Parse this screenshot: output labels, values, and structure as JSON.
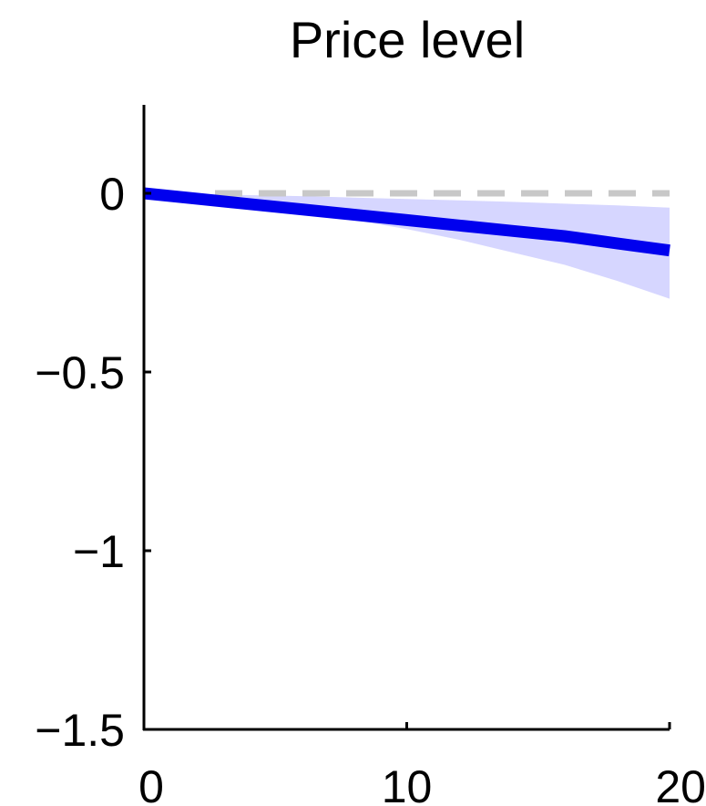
{
  "chart_data": {
    "type": "line",
    "title": "Price level",
    "xlabel": "",
    "ylabel": "",
    "xlim": [
      0,
      20
    ],
    "ylim": [
      -1.5,
      0.25
    ],
    "x_ticks": [
      0,
      10,
      20
    ],
    "x_tick_labels": [
      "0",
      "10",
      "20"
    ],
    "y_ticks": [
      0,
      -0.5,
      -1,
      -1.5
    ],
    "y_tick_labels": [
      "0",
      "−0.5",
      "−1",
      "−1.5"
    ],
    "grid": false,
    "legend": "none",
    "series": [
      {
        "x": [
          0,
          2,
          4,
          6,
          8,
          10,
          12,
          14,
          16,
          18,
          20
        ],
        "values": [
          0,
          -0.015,
          -0.03,
          -0.045,
          -0.06,
          -0.075,
          -0.09,
          -0.105,
          -0.12,
          -0.14,
          -0.16
        ],
        "band_lower": [
          0,
          -0.015,
          -0.032,
          -0.05,
          -0.075,
          -0.1,
          -0.13,
          -0.165,
          -0.2,
          -0.245,
          -0.295
        ],
        "band_upper": [
          0,
          -0.002,
          -0.005,
          -0.008,
          -0.012,
          -0.016,
          -0.02,
          -0.024,
          -0.029,
          -0.034,
          -0.04
        ]
      }
    ],
    "reference_line": {
      "y": 0,
      "style": "dashed"
    },
    "colors": {
      "line": "#0000ee",
      "band": "#d6d6ff",
      "reference": "#c8c8c8",
      "axis": "#000000"
    }
  }
}
